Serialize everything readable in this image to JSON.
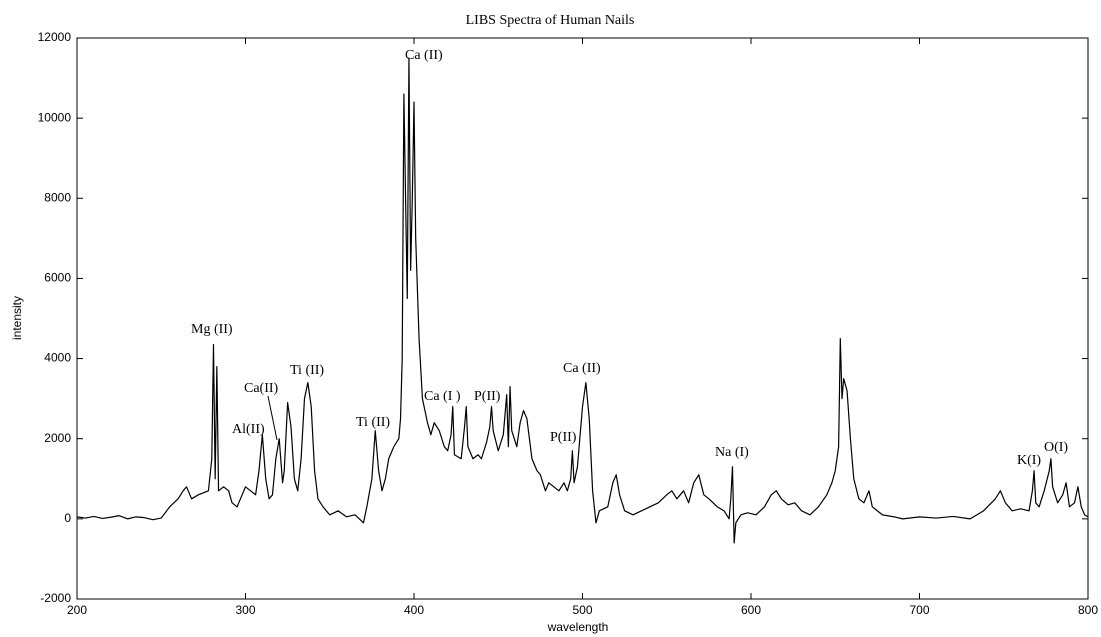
{
  "chart_data": {
    "type": "line",
    "title": "LIBS Spectra of Human Nails",
    "x_label": "wavelength",
    "y_label": "intensity",
    "xlim": [
      200,
      800
    ],
    "ylim": [
      -2000,
      12000
    ],
    "xticks": [
      200,
      300,
      400,
      500,
      600,
      700,
      800
    ],
    "yticks": [
      -2000,
      0,
      2000,
      4000,
      6000,
      8000,
      10000,
      12000
    ],
    "grid": false,
    "annotations": [
      "Ca (II)",
      "Mg (II)",
      "Ca(II)",
      "Al(II)",
      "Ti (II)",
      "Ti (II)",
      "Ca (I )",
      "P(II)",
      "Ca (II)",
      "P(II)",
      "Na (I)",
      "K(I)",
      "O(I)"
    ],
    "series": [
      {
        "color": "#000000",
        "x": [
          200,
          205,
          210,
          215,
          220,
          225,
          230,
          235,
          240,
          245,
          250,
          255,
          260,
          263,
          265,
          268,
          272,
          275,
          278,
          280,
          281,
          282,
          283,
          284,
          287,
          290,
          292,
          295,
          298,
          300,
          303,
          306,
          308,
          310,
          312,
          314,
          316,
          318,
          320,
          322,
          323,
          325,
          327,
          329,
          331,
          333,
          335,
          337,
          339,
          341,
          343,
          346,
          350,
          355,
          360,
          365,
          370,
          372,
          375,
          377,
          379,
          381,
          383,
          385,
          388,
          391,
          392,
          393,
          394,
          395,
          396,
          397,
          398,
          399,
          400,
          401,
          403,
          405,
          408,
          410,
          412,
          415,
          418,
          420,
          422,
          423,
          424,
          428,
          430,
          431,
          432,
          435,
          438,
          440,
          443,
          445,
          446,
          447,
          450,
          453,
          455,
          456,
          457,
          458,
          461,
          463,
          465,
          467,
          470,
          473,
          475,
          478,
          480,
          483,
          486,
          489,
          491,
          493,
          494,
          495,
          497,
          500,
          502,
          504,
          506,
          508,
          510,
          515,
          518,
          520,
          522,
          525,
          530,
          535,
          540,
          545,
          550,
          553,
          556,
          560,
          563,
          566,
          569,
          572,
          575,
          580,
          584,
          587,
          588,
          589,
          590,
          591,
          594,
          598,
          603,
          608,
          612,
          615,
          618,
          622,
          626,
          630,
          635,
          640,
          645,
          648,
          650,
          652,
          653,
          654,
          655,
          657,
          659,
          661,
          664,
          667,
          670,
          672,
          678,
          685,
          690,
          700,
          710,
          720,
          730,
          738,
          745,
          748,
          751,
          755,
          760,
          765,
          767,
          768,
          769,
          771,
          774,
          777,
          778,
          779,
          782,
          785,
          787,
          789,
          792,
          794,
          796,
          798,
          800
        ],
        "values": [
          50,
          20,
          60,
          10,
          40,
          80,
          0,
          50,
          30,
          -20,
          20,
          300,
          500,
          700,
          800,
          500,
          600,
          650,
          700,
          1500,
          4350,
          1000,
          3800,
          700,
          800,
          700,
          400,
          300,
          600,
          800,
          700,
          600,
          1200,
          2100,
          1000,
          500,
          600,
          1500,
          2000,
          900,
          1200,
          2900,
          2300,
          1000,
          700,
          1500,
          3000,
          3400,
          2800,
          1200,
          500,
          300,
          100,
          200,
          50,
          100,
          -100,
          300,
          1000,
          2200,
          1200,
          700,
          1000,
          1500,
          1800,
          2000,
          2500,
          4000,
          10600,
          8000,
          5500,
          11500,
          6200,
          8000,
          10400,
          7000,
          4500,
          3000,
          2400,
          2100,
          2400,
          2200,
          1800,
          1700,
          2100,
          2800,
          1600,
          1500,
          2300,
          2800,
          1800,
          1500,
          1600,
          1500,
          1900,
          2300,
          2800,
          2200,
          1700,
          2100,
          3100,
          1800,
          3300,
          2200,
          1800,
          2400,
          2700,
          2500,
          1500,
          1200,
          1100,
          700,
          900,
          800,
          700,
          900,
          700,
          1000,
          1700,
          900,
          1300,
          2800,
          3400,
          2500,
          700,
          -100,
          200,
          300,
          900,
          1100,
          600,
          200,
          100,
          200,
          300,
          400,
          600,
          700,
          500,
          700,
          400,
          900,
          1100,
          600,
          500,
          300,
          200,
          0,
          500,
          1300,
          -600,
          -100,
          100,
          150,
          100,
          300,
          600,
          700,
          500,
          350,
          400,
          200,
          100,
          300,
          600,
          900,
          1200,
          1800,
          4500,
          3000,
          3500,
          3200,
          2000,
          1000,
          500,
          400,
          700,
          300,
          100,
          50,
          0,
          50,
          20,
          60,
          0,
          200,
          500,
          700,
          400,
          200,
          250,
          200,
          700,
          1200,
          400,
          300,
          700,
          1200,
          1500,
          800,
          400,
          600,
          900,
          300,
          400,
          800,
          300,
          100,
          50
        ]
      }
    ]
  }
}
